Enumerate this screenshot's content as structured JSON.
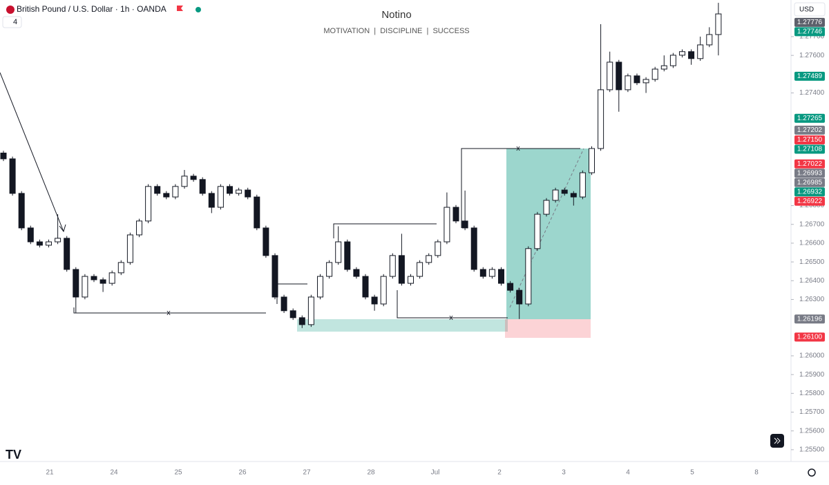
{
  "header": {
    "symbol": "British Pound / U.S. Dollar · 1h · OANDA",
    "indicator_count": "4",
    "currency": "USD"
  },
  "chart_data": {
    "type": "candlestick",
    "title": "Notino",
    "subtitle": "MOTIVATION  |  DISCIPLINE  |  SUCCESS",
    "x_labels": [
      "21",
      "24",
      "25",
      "26",
      "27",
      "28",
      "Jul",
      "2",
      "3",
      "4",
      "5",
      "8"
    ],
    "open": [
      1.2708,
      1.27049,
      1.26865,
      1.26681,
      1.26607,
      1.26589,
      1.26607,
      1.26626,
      1.2646,
      1.26313,
      1.26423,
      1.26405,
      1.26386,
      1.26442,
      1.26497,
      1.26644,
      1.26718,
      1.26902,
      1.26865,
      1.26846,
      1.26902,
      1.26957,
      1.26939,
      1.26865,
      1.26791,
      1.26902,
      1.26865,
      1.26883,
      1.26846,
      1.26681,
      1.26534,
      1.26313,
      1.2624,
      1.26203,
      1.26166,
      1.26313,
      1.26423,
      1.26497,
      1.26607,
      1.2646,
      1.26423,
      1.26313,
      1.26276,
      1.26423,
      1.26534,
      1.26386,
      1.26423,
      1.26497,
      1.26534,
      1.26607,
      1.26791,
      1.26718,
      1.26681,
      1.2646,
      1.26423,
      1.2646,
      1.26386,
      1.26349,
      1.26276,
      1.26571,
      1.26754,
      1.26828,
      1.26883,
      1.26865,
      1.26846,
      1.26975,
      1.27104,
      1.27417,
      1.27564,
      1.27417,
      1.27491,
      1.27454,
      1.27472,
      1.27527,
      1.27545,
      1.27601,
      1.2762,
      1.27583,
      1.27656,
      1.27711
    ],
    "high": [
      1.27092,
      1.27061,
      1.26877,
      1.26693,
      1.26619,
      1.26619,
      1.26754,
      1.26638,
      1.26472,
      1.26435,
      1.26435,
      1.26417,
      1.26454,
      1.26509,
      1.26656,
      1.2673,
      1.26914,
      1.26914,
      1.26877,
      1.26914,
      1.2699,
      1.26969,
      1.26951,
      1.26877,
      1.26914,
      1.26914,
      1.26895,
      1.26895,
      1.26858,
      1.26693,
      1.26546,
      1.26325,
      1.26252,
      1.26215,
      1.26325,
      1.26435,
      1.26509,
      1.2669,
      1.26619,
      1.26472,
      1.26435,
      1.26325,
      1.26435,
      1.26546,
      1.2665,
      1.26435,
      1.26509,
      1.26546,
      1.26619,
      1.2687,
      1.26803,
      1.2688,
      1.26693,
      1.26472,
      1.26472,
      1.26472,
      1.26398,
      1.26361,
      1.26583,
      1.26766,
      1.2684,
      1.26895,
      1.26895,
      1.26877,
      1.26987,
      1.27116,
      1.27766,
      1.2762,
      1.27576,
      1.27503,
      1.27503,
      1.27484,
      1.27539,
      1.276,
      1.27613,
      1.27632,
      1.27632,
      1.277,
      1.2775,
      1.2788
    ],
    "low": [
      1.27037,
      1.26853,
      1.26669,
      1.26595,
      1.26577,
      1.26577,
      1.26595,
      1.26448,
      1.2623,
      1.26301,
      1.26393,
      1.2634,
      1.26374,
      1.2643,
      1.26485,
      1.26632,
      1.26706,
      1.26853,
      1.26834,
      1.26834,
      1.2689,
      1.26927,
      1.26853,
      1.2676,
      1.26779,
      1.26853,
      1.26853,
      1.26834,
      1.26669,
      1.26522,
      1.26301,
      1.26228,
      1.26191,
      1.26148,
      1.26154,
      1.26301,
      1.26411,
      1.26485,
      1.26448,
      1.26411,
      1.26301,
      1.2624,
      1.26264,
      1.26411,
      1.26374,
      1.26374,
      1.26411,
      1.26485,
      1.26522,
      1.26595,
      1.26706,
      1.26669,
      1.26448,
      1.26411,
      1.26411,
      1.26374,
      1.26337,
      1.26196,
      1.26264,
      1.26559,
      1.26742,
      1.26816,
      1.26853,
      1.268,
      1.26834,
      1.26963,
      1.27092,
      1.27405,
      1.273,
      1.27405,
      1.27442,
      1.274,
      1.2746,
      1.27515,
      1.27533,
      1.27589,
      1.2755,
      1.27571,
      1.27644,
      1.276
    ],
    "close": [
      1.27049,
      1.26865,
      1.26681,
      1.26607,
      1.26589,
      1.26607,
      1.26626,
      1.2646,
      1.26313,
      1.26423,
      1.26405,
      1.26386,
      1.26442,
      1.26497,
      1.26644,
      1.26718,
      1.26902,
      1.26865,
      1.26846,
      1.26902,
      1.26957,
      1.26939,
      1.26865,
      1.26791,
      1.26902,
      1.26865,
      1.26883,
      1.26846,
      1.26681,
      1.26534,
      1.26313,
      1.2624,
      1.26203,
      1.26166,
      1.26313,
      1.26423,
      1.26497,
      1.26607,
      1.2646,
      1.26423,
      1.26313,
      1.26276,
      1.26423,
      1.26534,
      1.26386,
      1.26423,
      1.26497,
      1.26534,
      1.26607,
      1.26791,
      1.26718,
      1.26681,
      1.2646,
      1.26423,
      1.2646,
      1.26386,
      1.26349,
      1.26276,
      1.26571,
      1.26754,
      1.26828,
      1.26883,
      1.26865,
      1.26846,
      1.26975,
      1.27104,
      1.27417,
      1.27564,
      1.27417,
      1.27491,
      1.27454,
      1.27472,
      1.27527,
      1.27545,
      1.27601,
      1.2762,
      1.27583,
      1.27656,
      1.27711,
      1.27821
    ],
    "ylim": [
      1.25437,
      1.27895
    ],
    "yticks": [
      {
        "value": 1.277,
        "label": "1.27700"
      },
      {
        "value": 1.276,
        "label": "1.27600"
      },
      {
        "value": 1.274,
        "label": "1.27400"
      },
      {
        "value": 1.268,
        "label": "1.26800"
      },
      {
        "value": 1.267,
        "label": "1.26700"
      },
      {
        "value": 1.266,
        "label": "1.26600"
      },
      {
        "value": 1.265,
        "label": "1.26500"
      },
      {
        "value": 1.264,
        "label": "1.26400"
      },
      {
        "value": 1.263,
        "label": "1.26300"
      },
      {
        "value": 1.26,
        "label": "1.26000"
      },
      {
        "value": 1.259,
        "label": "1.25900"
      },
      {
        "value": 1.258,
        "label": "1.25800"
      },
      {
        "value": 1.257,
        "label": "1.25700"
      },
      {
        "value": 1.256,
        "label": "1.25600"
      },
      {
        "value": 1.255,
        "label": "1.25500"
      }
    ],
    "price_labels": [
      {
        "value": 1.27776,
        "label": "1.27776",
        "color": "#5d606b"
      },
      {
        "value": 1.27746,
        "label": "1.27746",
        "color": "#089981"
      },
      {
        "value": 1.27489,
        "label": "1.27489",
        "color": "#089981"
      },
      {
        "value": 1.27265,
        "label": "1.27265",
        "color": "#089981"
      },
      {
        "value": 1.27202,
        "label": "1.27202",
        "color": "#787b86"
      },
      {
        "value": 1.2715,
        "label": "1.27150",
        "color": "#f23645"
      },
      {
        "value": 1.27108,
        "label": "1.27108",
        "color": "#089981"
      },
      {
        "value": 1.27022,
        "label": "1.27022",
        "color": "#f23645"
      },
      {
        "value": 1.26993,
        "label": "1.26993",
        "color": "#787b86"
      },
      {
        "value": 1.26985,
        "label": "1.26985",
        "color": "#787b86"
      },
      {
        "value": 1.26932,
        "label": "1.26932",
        "color": "#089981"
      },
      {
        "value": 1.26922,
        "label": "1.26922",
        "color": "#f23645"
      },
      {
        "value": 1.26196,
        "label": "1.26196",
        "color": "#787b86"
      },
      {
        "value": 1.261,
        "label": "1.26100",
        "color": "#f23645"
      }
    ],
    "annotations": [
      "x",
      "x",
      "x"
    ]
  }
}
